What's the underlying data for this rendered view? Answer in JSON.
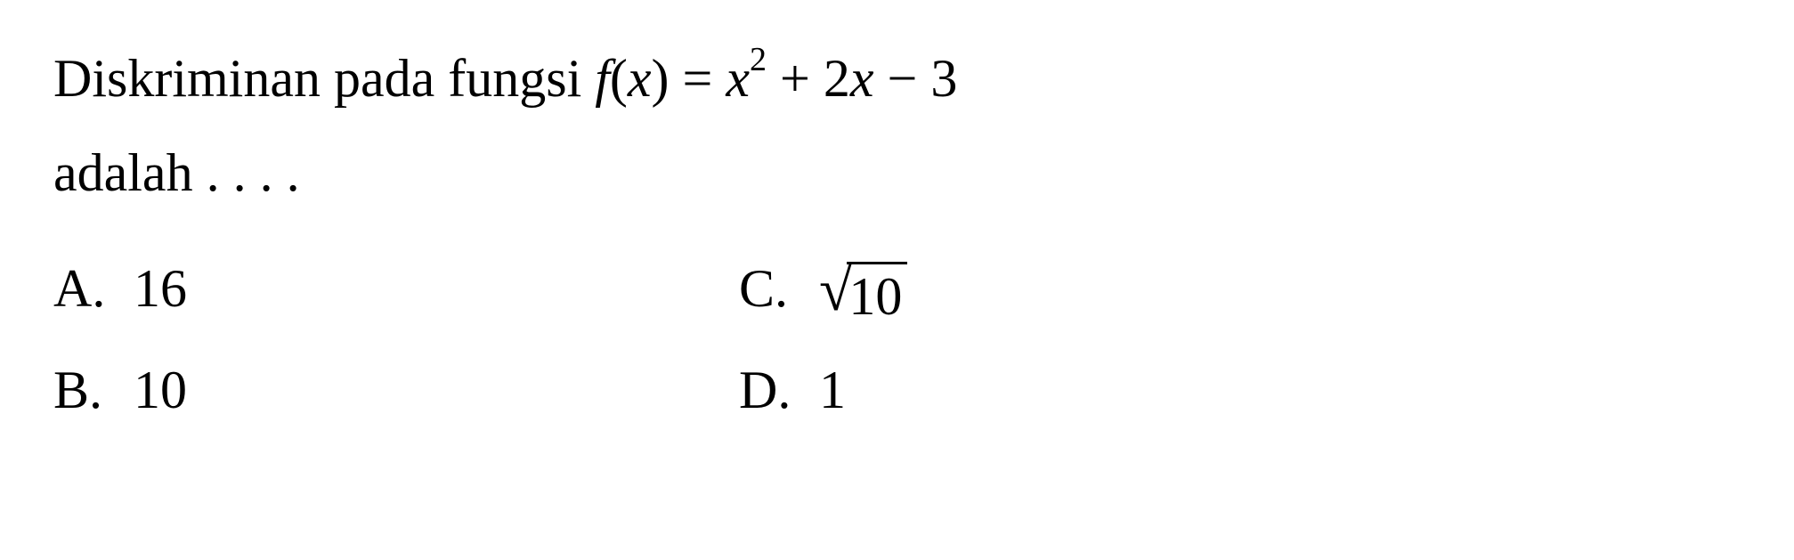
{
  "question": {
    "line1_part1": "Diskriminan pada fungsi ",
    "fx": "f",
    "paren_open": "(",
    "x_var": "x",
    "paren_close": ") = ",
    "x2_base": "x",
    "x2_exp": "2",
    "plus": " + 2",
    "x_term": "x",
    "minus": " − 3",
    "line2": "adalah . . . ."
  },
  "options": {
    "a": {
      "letter": "A.",
      "value": "16"
    },
    "b": {
      "letter": "B.",
      "value": "10"
    },
    "c": {
      "letter": "C.",
      "sqrt_value": "10"
    },
    "d": {
      "letter": "D.",
      "value": "1"
    }
  },
  "styling": {
    "font_family": "Times New Roman",
    "font_size_main": 60,
    "font_size_sup": 38,
    "text_color": "#000000",
    "background_color": "#ffffff",
    "sqrt_overline_thickness": 3
  }
}
